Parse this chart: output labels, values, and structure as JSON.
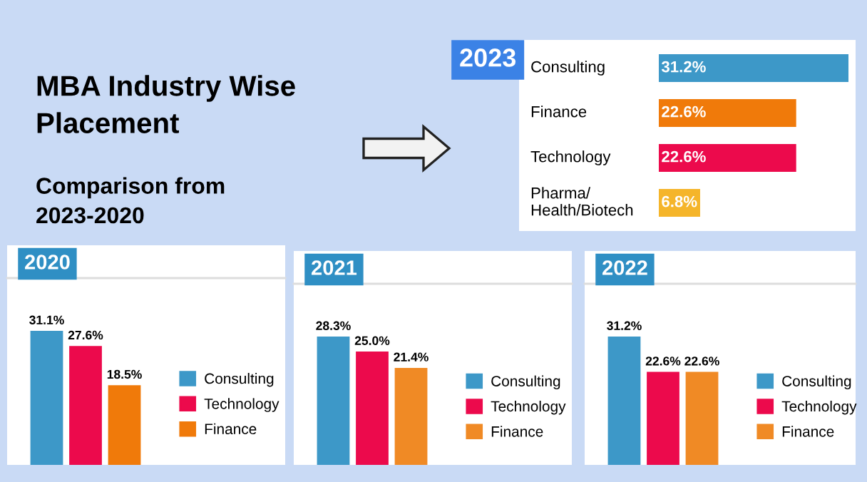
{
  "chart_data": [
    {
      "type": "other",
      "title": "MBA Industry Wise\nPlacement",
      "subtitle": "Comparison from\n2023-2020"
    },
    {
      "type": "bar",
      "title": "2023",
      "orientation": "horizontal",
      "categories": [
        "Consulting",
        "Finance",
        "Technology",
        "Pharma/\nHealth/Biotech"
      ],
      "values": [
        31.2,
        22.6,
        22.6,
        6.8
      ],
      "colors": [
        "#3d98c8",
        "#f07a0a",
        "#ec0a4c",
        "#f5b52a"
      ],
      "value_labels": [
        "31.2%",
        "22.6%",
        "22.6%",
        "6.8%"
      ]
    },
    {
      "type": "bar",
      "title": "2020",
      "categories": [
        null
      ],
      "legend": "right",
      "series": [
        {
          "name": "Consulting",
          "color": "#3d98c8",
          "values": [
            31.1
          ],
          "value_labels": [
            "31.1%"
          ]
        },
        {
          "name": "Technology",
          "color": "#ec0a4c",
          "values": [
            27.6
          ],
          "value_labels": [
            "27.6%"
          ]
        },
        {
          "name": "Finance",
          "color": "#f07a0a",
          "values": [
            18.5
          ],
          "value_labels": [
            "18.5%"
          ]
        }
      ]
    },
    {
      "type": "bar",
      "title": "2021",
      "categories": [
        null
      ],
      "legend": "right",
      "series": [
        {
          "name": "Consulting",
          "color": "#3d98c8",
          "values": [
            28.3
          ],
          "value_labels": [
            "28.3%"
          ]
        },
        {
          "name": "Technology",
          "color": "#ec0a4c",
          "values": [
            25.0
          ],
          "value_labels": [
            "25.0%"
          ]
        },
        {
          "name": "Finance",
          "color": "#f08a25",
          "values": [
            21.4
          ],
          "value_labels": [
            "21.4%"
          ]
        }
      ]
    },
    {
      "type": "bar",
      "title": "2022",
      "categories": [
        null
      ],
      "legend": "right",
      "series": [
        {
          "name": "Consulting",
          "color": "#3d98c8",
          "values": [
            31.2
          ],
          "value_labels": [
            "31.2%"
          ]
        },
        {
          "name": "Technology",
          "color": "#ec0a4c",
          "values": [
            22.6
          ],
          "value_labels": [
            "22.6%"
          ]
        },
        {
          "name": "Finance",
          "color": "#f08a25",
          "values": [
            22.6
          ],
          "value_labels": [
            "22.6%"
          ]
        }
      ]
    }
  ]
}
